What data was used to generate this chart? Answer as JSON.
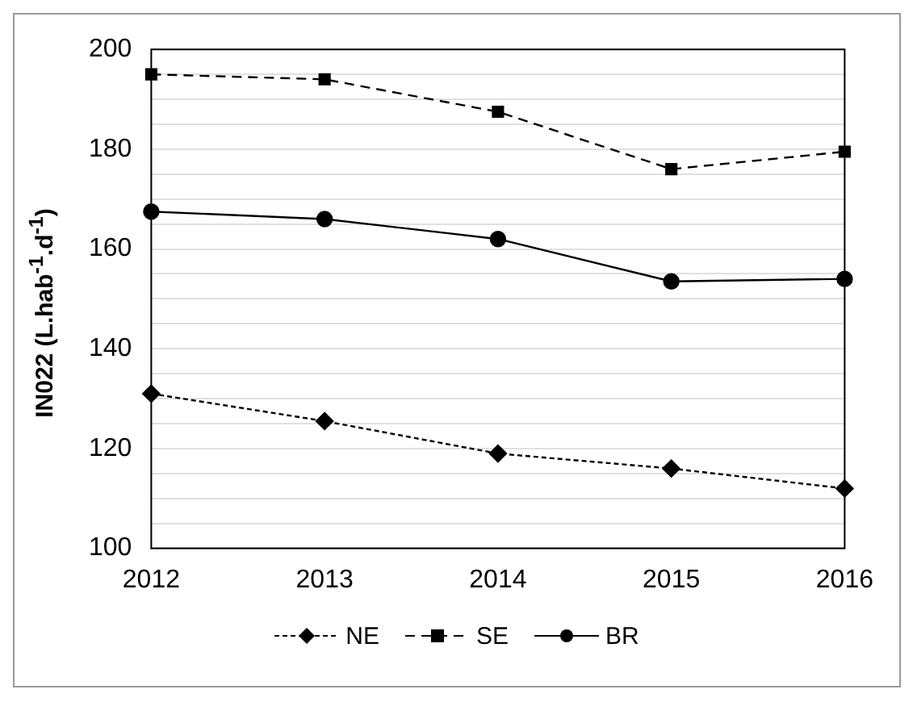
{
  "chart_data": {
    "type": "line",
    "ylabel": "IN022 (L.hab$^{-1}$.d$^{-1}$)",
    "categories": [
      "2012",
      "2013",
      "2014",
      "2015",
      "2016"
    ],
    "series": [
      {
        "name": "NE",
        "color": "#000000",
        "values": [
          131,
          125.5,
          119,
          116,
          112
        ],
        "line_style": "dotted",
        "marker": "diamond"
      },
      {
        "name": "SE",
        "color": "#000000",
        "values": [
          195,
          194,
          187.5,
          176,
          179.5
        ],
        "line_style": "dashed",
        "marker": "square"
      },
      {
        "name": "BR",
        "color": "#000000",
        "values": [
          167.5,
          166,
          162,
          153.5,
          154
        ],
        "line_style": "solid",
        "marker": "circle"
      }
    ],
    "ylim": [
      100,
      200
    ],
    "yticks": [
      100,
      {
        "value": 105,
        "label": null
      },
      {
        "value": 110,
        "label": null
      },
      {
        "value": 115,
        "label": null
      },
      120,
      {
        "value": 125,
        "label": null
      },
      {
        "value": 130,
        "label": null
      },
      {
        "value": 135,
        "label": null
      },
      140,
      {
        "value": 145,
        "label": null
      },
      {
        "value": 150,
        "label": null
      },
      {
        "value": 155,
        "label": null
      },
      160,
      {
        "value": 165,
        "label": null
      },
      {
        "value": 170,
        "label": null
      },
      {
        "value": 175,
        "label": null
      },
      180,
      {
        "value": 185,
        "label": null
      },
      {
        "value": 190,
        "label": null
      },
      {
        "value": 195,
        "label": null
      },
      200
    ],
    "grid": "y",
    "legend": "bottom"
  }
}
